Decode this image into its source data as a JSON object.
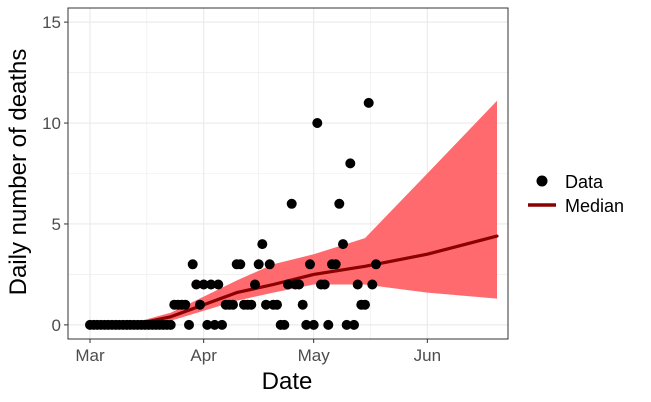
{
  "chart_data": {
    "type": "scatter",
    "title": "",
    "xlabel": "Date",
    "ylabel": "Daily number of deaths",
    "x_ticks": [
      "Mar",
      "Apr",
      "May",
      "Jun"
    ],
    "x_tick_dates": [
      "2020-03-01",
      "2020-04-01",
      "2020-05-01",
      "2020-06-01"
    ],
    "xlim": [
      "2020-02-24",
      "2020-06-23"
    ],
    "y_ticks": [
      0,
      5,
      10,
      15
    ],
    "ylim": [
      -0.7,
      15.7
    ],
    "grid": true,
    "legend_position": "right",
    "legend": [
      {
        "name": "Data",
        "symbol": "point"
      },
      {
        "name": "Median",
        "symbol": "line"
      }
    ],
    "colors": {
      "points": "#000000",
      "median": "#8b0000",
      "band": "#ff5a5f",
      "grid": "#ebebeb",
      "panel_border": "#333333"
    },
    "series": [
      {
        "name": "Data",
        "type": "scatter",
        "points": [
          [
            "2020-03-01",
            0
          ],
          [
            "2020-03-02",
            0
          ],
          [
            "2020-03-03",
            0
          ],
          [
            "2020-03-04",
            0
          ],
          [
            "2020-03-05",
            0
          ],
          [
            "2020-03-06",
            0
          ],
          [
            "2020-03-07",
            0
          ],
          [
            "2020-03-08",
            0
          ],
          [
            "2020-03-09",
            0
          ],
          [
            "2020-03-10",
            0
          ],
          [
            "2020-03-11",
            0
          ],
          [
            "2020-03-12",
            0
          ],
          [
            "2020-03-13",
            0
          ],
          [
            "2020-03-14",
            0
          ],
          [
            "2020-03-15",
            0
          ],
          [
            "2020-03-16",
            0
          ],
          [
            "2020-03-17",
            0
          ],
          [
            "2020-03-18",
            0
          ],
          [
            "2020-03-19",
            0
          ],
          [
            "2020-03-20",
            0
          ],
          [
            "2020-03-21",
            0
          ],
          [
            "2020-03-22",
            0
          ],
          [
            "2020-03-23",
            0
          ],
          [
            "2020-03-24",
            1
          ],
          [
            "2020-03-25",
            1
          ],
          [
            "2020-03-26",
            1
          ],
          [
            "2020-03-27",
            1
          ],
          [
            "2020-03-28",
            0
          ],
          [
            "2020-03-29",
            3
          ],
          [
            "2020-03-30",
            2
          ],
          [
            "2020-03-31",
            1
          ],
          [
            "2020-04-01",
            2
          ],
          [
            "2020-04-02",
            0
          ],
          [
            "2020-04-03",
            2
          ],
          [
            "2020-04-04",
            0
          ],
          [
            "2020-04-05",
            2
          ],
          [
            "2020-04-06",
            0
          ],
          [
            "2020-04-07",
            1
          ],
          [
            "2020-04-08",
            1
          ],
          [
            "2020-04-09",
            1
          ],
          [
            "2020-04-10",
            3
          ],
          [
            "2020-04-11",
            3
          ],
          [
            "2020-04-12",
            1
          ],
          [
            "2020-04-13",
            1
          ],
          [
            "2020-04-14",
            1
          ],
          [
            "2020-04-15",
            2
          ],
          [
            "2020-04-16",
            3
          ],
          [
            "2020-04-17",
            4
          ],
          [
            "2020-04-18",
            1
          ],
          [
            "2020-04-19",
            3
          ],
          [
            "2020-04-20",
            1
          ],
          [
            "2020-04-21",
            1
          ],
          [
            "2020-04-22",
            0
          ],
          [
            "2020-04-23",
            0
          ],
          [
            "2020-04-24",
            2
          ],
          [
            "2020-04-25",
            6
          ],
          [
            "2020-04-26",
            2
          ],
          [
            "2020-04-27",
            2
          ],
          [
            "2020-04-28",
            1
          ],
          [
            "2020-04-29",
            0
          ],
          [
            "2020-04-30",
            3
          ],
          [
            "2020-05-01",
            0
          ],
          [
            "2020-05-02",
            10
          ],
          [
            "2020-05-03",
            2
          ],
          [
            "2020-05-04",
            2
          ],
          [
            "2020-05-05",
            0
          ],
          [
            "2020-05-06",
            3
          ],
          [
            "2020-05-07",
            3
          ],
          [
            "2020-05-08",
            6
          ],
          [
            "2020-05-09",
            4
          ],
          [
            "2020-05-10",
            0
          ],
          [
            "2020-05-11",
            8
          ],
          [
            "2020-05-12",
            0
          ],
          [
            "2020-05-13",
            2
          ],
          [
            "2020-05-14",
            1
          ],
          [
            "2020-05-15",
            1
          ],
          [
            "2020-05-16",
            11
          ],
          [
            "2020-05-17",
            2
          ],
          [
            "2020-05-18",
            3
          ]
        ]
      },
      {
        "name": "Median",
        "type": "line",
        "points": [
          [
            "2020-03-01",
            0
          ],
          [
            "2020-03-15",
            0.1
          ],
          [
            "2020-03-23",
            0.4
          ],
          [
            "2020-04-01",
            1.0
          ],
          [
            "2020-04-10",
            1.6
          ],
          [
            "2020-04-20",
            2.0
          ],
          [
            "2020-05-01",
            2.5
          ],
          [
            "2020-05-15",
            2.9
          ],
          [
            "2020-06-01",
            3.5
          ],
          [
            "2020-06-20",
            4.4
          ]
        ]
      },
      {
        "name": "Band",
        "type": "area",
        "upper": [
          [
            "2020-03-01",
            0
          ],
          [
            "2020-03-15",
            0.2
          ],
          [
            "2020-03-23",
            0.6
          ],
          [
            "2020-04-01",
            1.4
          ],
          [
            "2020-04-10",
            2.2
          ],
          [
            "2020-04-20",
            3.0
          ],
          [
            "2020-05-01",
            3.5
          ],
          [
            "2020-05-15",
            4.3
          ],
          [
            "2020-06-01",
            7.5
          ],
          [
            "2020-06-20",
            11.1
          ]
        ],
        "lower": [
          [
            "2020-03-01",
            0
          ],
          [
            "2020-03-15",
            0.0
          ],
          [
            "2020-03-23",
            0.2
          ],
          [
            "2020-04-01",
            0.7
          ],
          [
            "2020-04-10",
            1.2
          ],
          [
            "2020-04-20",
            1.6
          ],
          [
            "2020-05-01",
            2.0
          ],
          [
            "2020-05-15",
            2.0
          ],
          [
            "2020-06-01",
            1.6
          ],
          [
            "2020-06-20",
            1.3
          ]
        ]
      }
    ]
  }
}
